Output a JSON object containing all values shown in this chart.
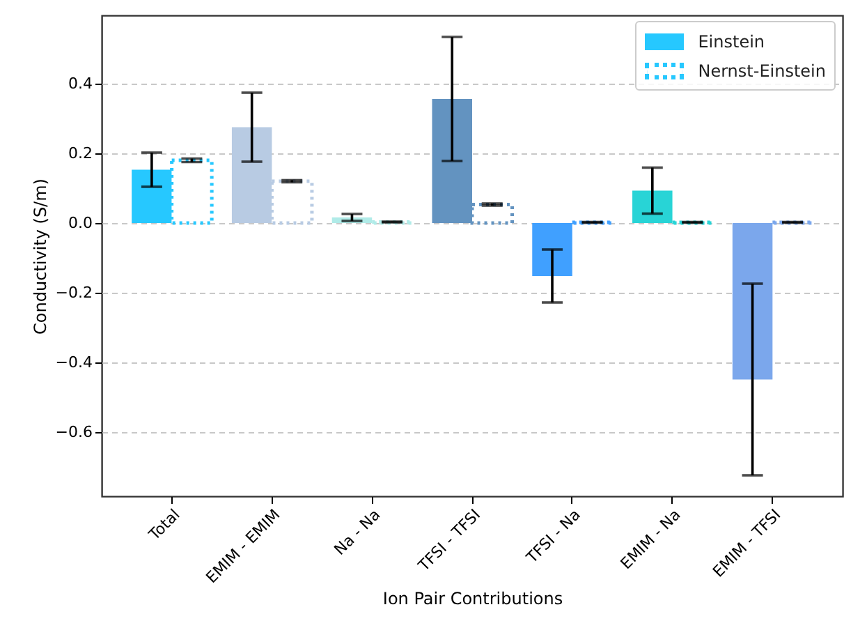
{
  "chart_data": {
    "type": "bar",
    "xlabel": "Ion Pair Contributions",
    "ylabel": "Conductivity (S/m)",
    "categories": [
      "Total",
      "EMIM - EMIM",
      "Na - Na",
      "TFSI - TFSI",
      "TFSI - Na",
      "EMIM - Na",
      "EMIM - TFSI"
    ],
    "series": [
      {
        "name": "Einstein",
        "colors": [
          "#26c8ff",
          "#b8cbe3",
          "#b0ebe8",
          "#6393c0",
          "#40a0ff",
          "#28d4d6",
          "#7ba7ec"
        ],
        "values": [
          0.153,
          0.275,
          0.016,
          0.356,
          -0.152,
          0.093,
          -0.449
        ],
        "errors": [
          0.049,
          0.099,
          0.01,
          0.178,
          0.076,
          0.066,
          0.275
        ]
      },
      {
        "name": "Nernst-Einstein",
        "line_style": "dotted",
        "colors": [
          "#26c8ff",
          "#b8cbe3",
          "#b0ebe8",
          "#6393c0",
          "#40a0ff",
          "#28d4d6",
          "#7ba7ec"
        ],
        "values": [
          0.18,
          0.12,
          0.003,
          0.053,
          0.002,
          0.002,
          0.002
        ],
        "errors": [
          0.005,
          0.003,
          0.001,
          0.003,
          0.001,
          0.001,
          0.001
        ]
      }
    ],
    "ylim": [
      -0.784,
      0.596
    ],
    "yticks": [
      {
        "value": -0.6,
        "label": "−0.6"
      },
      {
        "value": -0.4,
        "label": "−0.4"
      },
      {
        "value": -0.2,
        "label": "−0.2"
      },
      {
        "value": 0,
        "label": "0.0"
      },
      {
        "value": 0.2,
        "label": "0.2"
      },
      {
        "value": 0.4,
        "label": "0.4"
      }
    ],
    "grid": "y",
    "legend": "top right"
  }
}
